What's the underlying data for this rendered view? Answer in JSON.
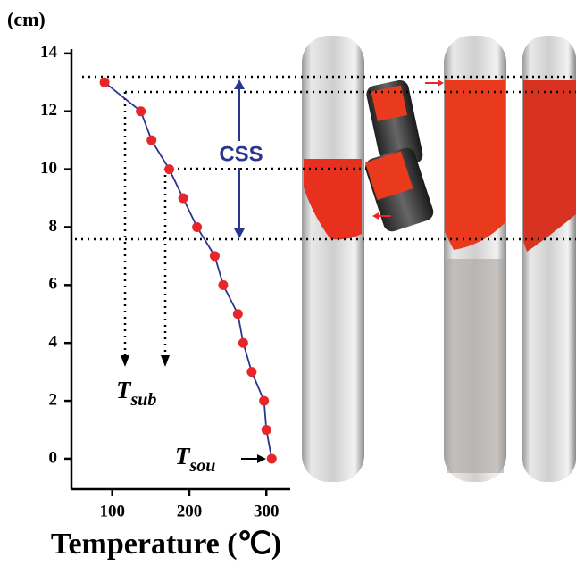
{
  "chart_data": {
    "type": "line",
    "y_label": "(cm)",
    "x_label": "Temperature (℃)",
    "x": [
      90,
      137,
      151,
      174,
      192,
      210,
      233,
      244,
      263,
      270,
      281,
      297,
      300,
      307
    ],
    "series": [
      {
        "color": "#2a3590",
        "marker_color": "#e8262a",
        "values": [
          13,
          12,
          11,
          10,
          9,
          8,
          7,
          6,
          5,
          4,
          3,
          2,
          1,
          0
        ]
      }
    ],
    "xlim": [
      47,
      331
    ],
    "ylim": [
      -1.05,
      14.15
    ],
    "xticks": [
      100,
      200,
      300
    ],
    "yticks": [
      0,
      2,
      4,
      6,
      8,
      10,
      12,
      14
    ],
    "annotations": {
      "css": "CSS",
      "t_sub_main": "T",
      "t_sub_sub": "sub",
      "t_sou_main": "T",
      "t_sou_sub": "sou"
    }
  }
}
